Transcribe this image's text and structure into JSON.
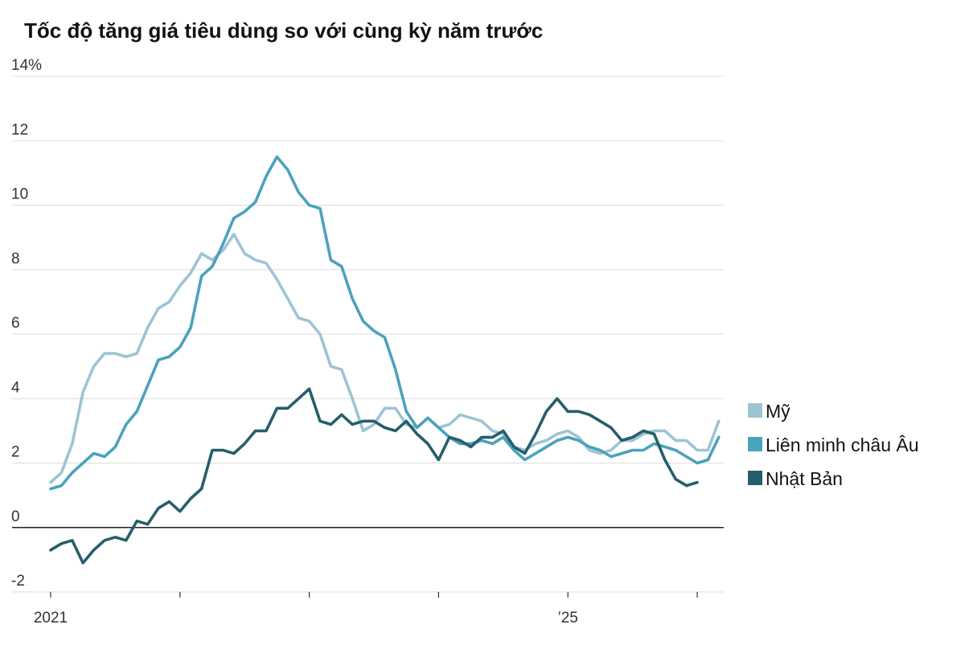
{
  "chart_data": {
    "type": "line",
    "title": "Tốc độ tăng giá tiêu dùng so với cùng kỳ năm trước",
    "y_unit_label": "14%",
    "ylim": [
      -2,
      14
    ],
    "y_ticks": [
      {
        "value": 14,
        "label": "14%"
      },
      {
        "value": 12,
        "label": "12"
      },
      {
        "value": 10,
        "label": "10"
      },
      {
        "value": 8,
        "label": "8"
      },
      {
        "value": 6,
        "label": "6"
      },
      {
        "value": 4,
        "label": "4"
      },
      {
        "value": 2,
        "label": "2"
      },
      {
        "value": 0,
        "label": "0"
      },
      {
        "value": -2,
        "label": "-2"
      }
    ],
    "x_start": "2021-01",
    "x_ticks": [
      {
        "month_index": 0,
        "label": "2021"
      },
      {
        "month_index": 12,
        "label": ""
      },
      {
        "month_index": 24,
        "label": ""
      },
      {
        "month_index": 36,
        "label": ""
      },
      {
        "month_index": 48,
        "label": "’25"
      },
      {
        "month_index": 60,
        "label": ""
      }
    ],
    "grid": true,
    "legend_position": "right",
    "series": [
      {
        "name": "Mỹ",
        "color": "#9cc5d4",
        "values": [
          1.4,
          1.7,
          2.6,
          4.2,
          5.0,
          5.4,
          5.4,
          5.3,
          5.4,
          6.2,
          6.8,
          7.0,
          7.5,
          7.9,
          8.5,
          8.3,
          8.6,
          9.1,
          8.5,
          8.3,
          8.2,
          7.7,
          7.1,
          6.5,
          6.4,
          6.0,
          5.0,
          4.9,
          4.0,
          3.0,
          3.2,
          3.7,
          3.7,
          3.2,
          3.1,
          3.4,
          3.1,
          3.2,
          3.5,
          3.4,
          3.3,
          3.0,
          2.9,
          2.5,
          2.4,
          2.6,
          2.7,
          2.9,
          3.0,
          2.8,
          2.4,
          2.3,
          2.4,
          2.7,
          2.7,
          2.9,
          3.0,
          3.0,
          2.7,
          2.7,
          2.4,
          2.4,
          3.3
        ]
      },
      {
        "name": "Liên minh châu Âu",
        "color": "#4ba2bd",
        "values": [
          1.2,
          1.3,
          1.7,
          2.0,
          2.3,
          2.2,
          2.5,
          3.2,
          3.6,
          4.4,
          5.2,
          5.3,
          5.6,
          6.2,
          7.8,
          8.1,
          8.8,
          9.6,
          9.8,
          10.1,
          10.9,
          11.5,
          11.1,
          10.4,
          10.0,
          9.9,
          8.3,
          8.1,
          7.1,
          6.4,
          6.1,
          5.9,
          4.9,
          3.6,
          3.1,
          3.4,
          3.1,
          2.8,
          2.6,
          2.6,
          2.7,
          2.6,
          2.8,
          2.4,
          2.1,
          2.3,
          2.5,
          2.7,
          2.8,
          2.7,
          2.5,
          2.4,
          2.2,
          2.3,
          2.4,
          2.4,
          2.6,
          2.5,
          2.4,
          2.2,
          2.0,
          2.1,
          2.8
        ]
      },
      {
        "name": "Nhật Bản",
        "color": "#265f6a",
        "values": [
          -0.7,
          -0.5,
          -0.4,
          -1.1,
          -0.7,
          -0.4,
          -0.3,
          -0.4,
          0.2,
          0.1,
          0.6,
          0.8,
          0.5,
          0.9,
          1.2,
          2.4,
          2.4,
          2.3,
          2.6,
          3.0,
          3.0,
          3.7,
          3.7,
          4.0,
          4.3,
          3.3,
          3.2,
          3.5,
          3.2,
          3.3,
          3.3,
          3.1,
          3.0,
          3.3,
          2.9,
          2.6,
          2.1,
          2.8,
          2.7,
          2.5,
          2.8,
          2.8,
          3.0,
          2.5,
          2.3,
          2.9,
          3.6,
          4.0,
          3.6,
          3.6,
          3.5,
          3.3,
          3.1,
          2.7,
          2.8,
          3.0,
          2.9,
          2.1,
          1.5,
          1.3,
          1.4
        ]
      }
    ]
  }
}
